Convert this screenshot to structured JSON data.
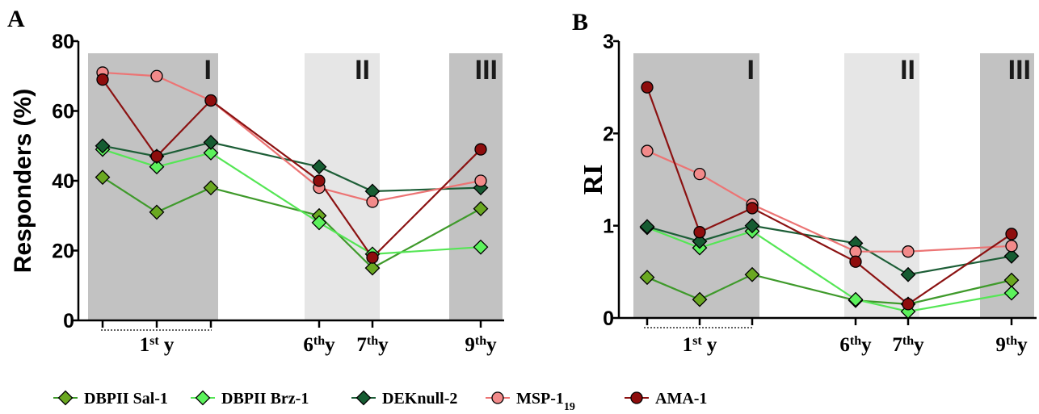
{
  "panels": [
    {
      "panel_letter": "A",
      "chart_data": {
        "type": "line",
        "title": "",
        "xlabel": "",
        "ylabel": "Responders (%)",
        "ylim": [
          0,
          80
        ],
        "yticks": [
          0,
          20,
          40,
          60,
          80
        ],
        "x": [
          1,
          2,
          3,
          6,
          7,
          9
        ],
        "x_group_labels": [
          {
            "label": "1",
            "sup": "st",
            "suffix": " y",
            "at": 2
          },
          {
            "label": "6",
            "sup": "th",
            "suffix": "y",
            "at": 6
          },
          {
            "label": "7",
            "sup": "th",
            "suffix": "y",
            "at": 7
          },
          {
            "label": "9",
            "sup": "th",
            "suffix": "y",
            "at": 9
          }
        ],
        "regions": [
          {
            "label": "I",
            "from": 0.8,
            "to": 3.2,
            "color": "#c2c2c2"
          },
          {
            "label": "II",
            "from": 5.6,
            "to": 6.8,
            "color": "#e6e6e6"
          },
          {
            "label": "III",
            "from": 8.6,
            "to": 9.4,
            "color": "#c2c2c2"
          }
        ],
        "series": [
          {
            "name": "DBPII Sal-1",
            "values": [
              41,
              31,
              38,
              30,
              15,
              32
            ]
          },
          {
            "name": "DBPII Brz-1",
            "values": [
              49,
              44,
              48,
              28,
              19,
              21
            ]
          },
          {
            "name": "DEKnull-2",
            "values": [
              50,
              47,
              51,
              44,
              37,
              38
            ]
          },
          {
            "name": "MSP-1",
            "values": [
              71,
              70,
              63,
              38,
              34,
              40
            ]
          },
          {
            "name": "AMA-1",
            "values": [
              69,
              47,
              63,
              40,
              18,
              49
            ]
          }
        ]
      }
    },
    {
      "panel_letter": "B",
      "chart_data": {
        "type": "line",
        "title": "",
        "xlabel": "",
        "ylabel": "RI",
        "ylim": [
          0,
          3
        ],
        "yticks": [
          0,
          1,
          2,
          3
        ],
        "x": [
          1,
          2,
          3,
          6,
          7,
          9
        ],
        "x_group_labels": [
          {
            "label": "1",
            "sup": "st",
            "suffix": " y",
            "at": 2
          },
          {
            "label": "6",
            "sup": "th",
            "suffix": "y",
            "at": 6
          },
          {
            "label": "7",
            "sup": "th",
            "suffix": "y",
            "at": 7
          },
          {
            "label": "9",
            "sup": "th",
            "suffix": "y",
            "at": 9
          }
        ],
        "regions": [
          {
            "label": "I",
            "from": 0.8,
            "to": 3.2,
            "color": "#c2c2c2"
          },
          {
            "label": "II",
            "from": 5.6,
            "to": 6.8,
            "color": "#e6e6e6"
          },
          {
            "label": "III",
            "from": 8.6,
            "to": 9.4,
            "color": "#c2c2c2"
          }
        ],
        "series": [
          {
            "name": "DBPII Sal-1",
            "values": [
              0.44,
              0.2,
              0.47,
              0.19,
              0.15,
              0.41
            ]
          },
          {
            "name": "DBPII Brz-1",
            "values": [
              0.98,
              0.76,
              0.94,
              0.2,
              0.07,
              0.27
            ]
          },
          {
            "name": "DEKnull-2",
            "values": [
              0.99,
              0.83,
              1.0,
              0.81,
              0.47,
              0.67
            ]
          },
          {
            "name": "MSP-1",
            "values": [
              1.81,
              1.56,
              1.23,
              0.72,
              0.72,
              0.78
            ]
          },
          {
            "name": "AMA-1",
            "values": [
              2.5,
              0.93,
              1.19,
              0.61,
              0.15,
              0.91
            ]
          }
        ]
      }
    }
  ],
  "legend": {
    "placement": "bottom",
    "items": [
      {
        "name": "DBPII Sal-1",
        "label": "DBPII Sal-1",
        "sub": "",
        "marker": "diamond",
        "fill": "#6aa821",
        "line": "#3f9a2b"
      },
      {
        "name": "DBPII Brz-1",
        "label": "DBPII Brz-1",
        "sub": "",
        "marker": "diamond",
        "fill": "#5cf25c",
        "line": "#55e655"
      },
      {
        "name": "DEKnull-2",
        "label": "DEKnull-2",
        "sub": "",
        "marker": "diamond",
        "fill": "#165c32",
        "line": "#1d5e37"
      },
      {
        "name": "MSP-1",
        "label": "MSP-1",
        "sub": "19",
        "marker": "circle",
        "fill": "#f28a8a",
        "line": "#ec7474"
      },
      {
        "name": "AMA-1",
        "label": "AMA-1",
        "sub": "",
        "marker": "circle",
        "fill": "#8e0d0d",
        "line": "#8b1212"
      }
    ]
  }
}
